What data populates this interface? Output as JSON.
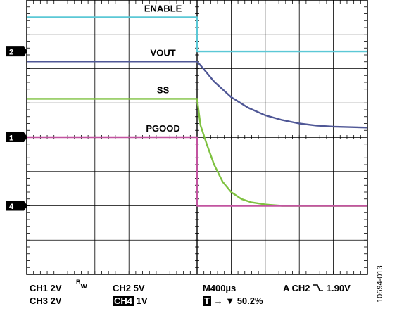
{
  "chart_data": {
    "type": "line",
    "grid": true,
    "x_divisions": 10,
    "y_divisions": 8,
    "time_per_div": "400µs",
    "trace_labels": [
      {
        "text": "ENABLE"
      },
      {
        "text": "VOUT"
      },
      {
        "text": "SS"
      },
      {
        "text": "PGOOD"
      }
    ],
    "series": [
      {
        "name": "ENABLE",
        "channel": "CH2",
        "color": "#5bc8d6",
        "unit": "div",
        "x": [
          0,
          5.0,
          5.0,
          10
        ],
        "values": [
          3.5,
          3.5,
          2.5,
          2.5
        ]
      },
      {
        "name": "VOUT",
        "channel": "CH3",
        "color": "#4f5796",
        "unit": "div",
        "x": [
          0,
          5.0,
          5.2,
          5.5,
          6.0,
          6.5,
          7.0,
          7.5,
          8.0,
          8.5,
          9.0,
          10
        ],
        "values": [
          2.21,
          2.21,
          1.98,
          1.62,
          1.17,
          0.86,
          0.64,
          0.5,
          0.4,
          0.34,
          0.31,
          0.28
        ]
      },
      {
        "name": "SS",
        "channel": "CH4",
        "color": "#7fc241",
        "unit": "div",
        "x": [
          0,
          5.0,
          5.1,
          5.3,
          5.5,
          5.75,
          6.0,
          6.3,
          6.6,
          7.0,
          7.5,
          10
        ],
        "values": [
          1.12,
          1.12,
          0.35,
          -0.25,
          -0.8,
          -1.3,
          -1.6,
          -1.8,
          -1.9,
          -1.96,
          -2.0,
          -2.0
        ]
      },
      {
        "name": "PGOOD",
        "channel": "CH1",
        "color": "#c254a0",
        "unit": "div",
        "x": [
          0,
          5.0,
          5.0,
          10
        ],
        "values": [
          0.0,
          0.0,
          -2.0,
          -2.0
        ]
      }
    ],
    "markers": [
      {
        "label": "2",
        "level": 2.5
      },
      {
        "label": "1",
        "level": 0.0
      },
      {
        "label": "4",
        "level": -2.0
      }
    ],
    "footer": {
      "ch1": "CH1 2V",
      "bw": "B",
      "bw_sub": "W",
      "ch2": "CH2 5V",
      "timebase": "M400µs",
      "trigger": "A  CH2",
      "trigger_level": "1.90V",
      "ch3": "CH3 2V",
      "ch4_tag": "CH4",
      "ch4_scale": "1V",
      "trig_tag": "T",
      "trig_pos": "50.2%"
    },
    "figure_id": "10694-013"
  }
}
